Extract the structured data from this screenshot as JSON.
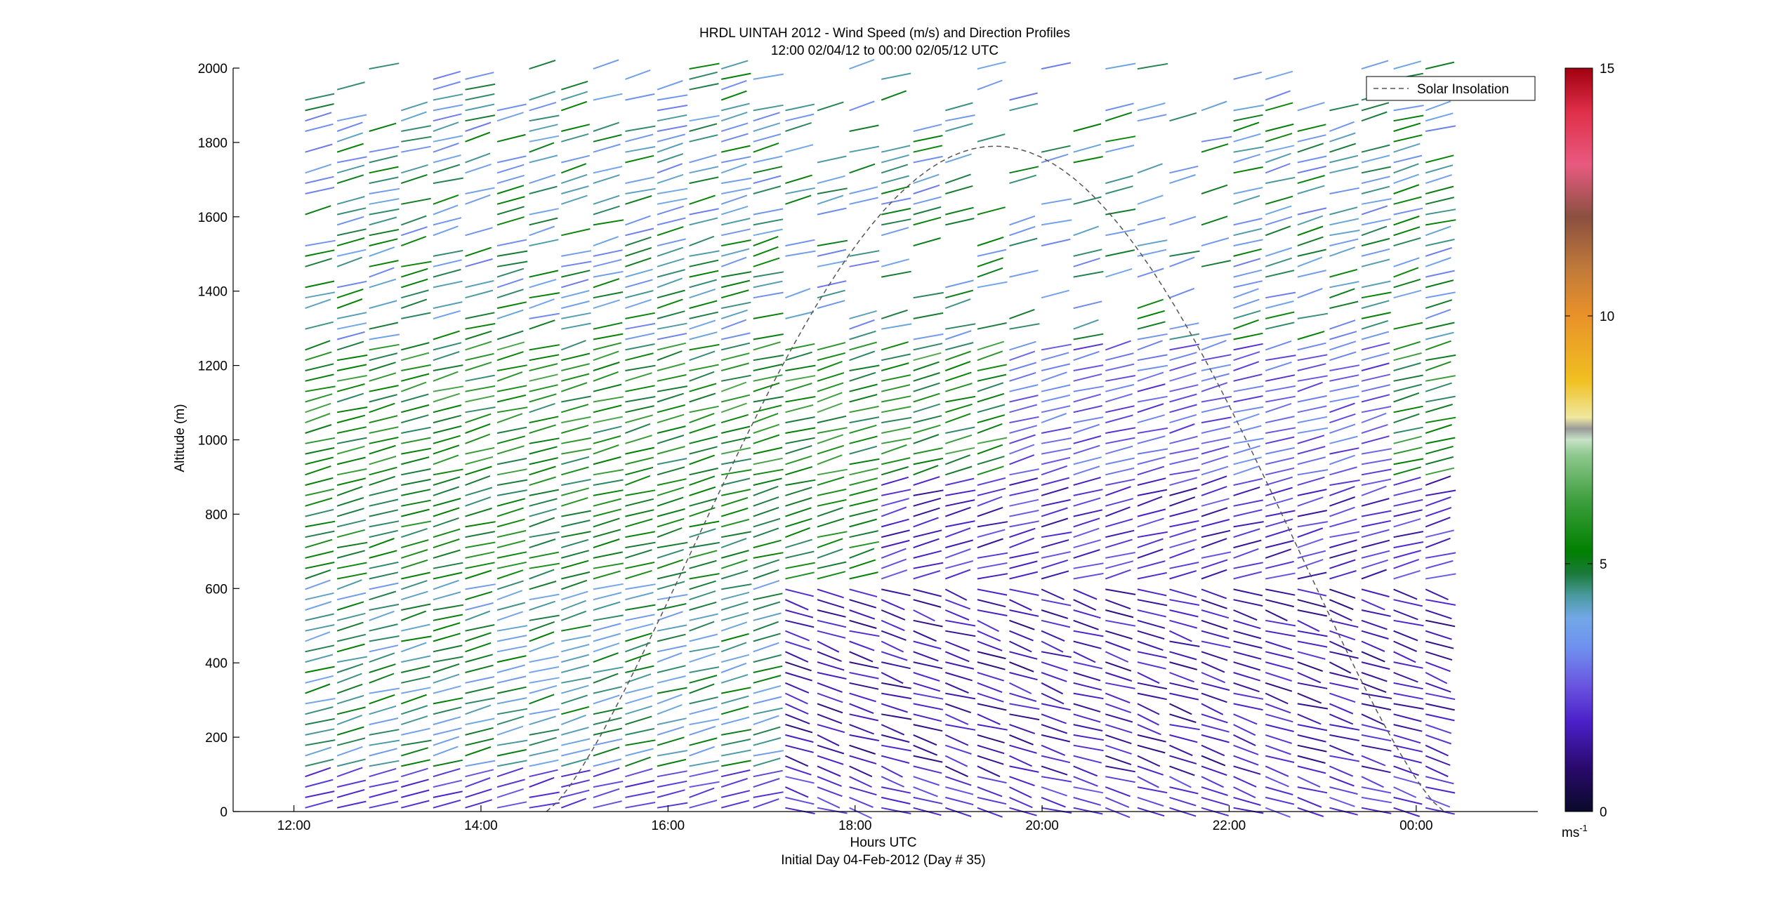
{
  "chart_data": {
    "type": "wind-barb-profile",
    "title": "HRDL UINTAH 2012 - Wind Speed (m/s) and Direction Profiles",
    "subtitle": "12:00 02/04/12 to 00:00 02/05/12  UTC",
    "xlabel": "Hours UTC",
    "xlabel2": "Initial Day 04-Feb-2012 (Day # 35)",
    "ylabel": "Altitude (m)",
    "x_ticks": [
      "12:00",
      "14:00",
      "16:00",
      "18:00",
      "20:00",
      "22:00",
      "00:00"
    ],
    "x_tick_hours": [
      12,
      14,
      16,
      18,
      20,
      22,
      24
    ],
    "x_range_hours": [
      11.35,
      25.3
    ],
    "ylim": [
      0,
      2000
    ],
    "y_ticks": [
      0,
      200,
      400,
      600,
      800,
      1000,
      1200,
      1400,
      1600,
      1800,
      2000
    ],
    "legend": {
      "label": "Solar Insolation",
      "style": "dashed",
      "color": "#555555",
      "location": "top-right"
    },
    "solar_insolation_curve": {
      "start_hour": 14.7,
      "end_hour": 24.3,
      "peak_hour": 19.5,
      "peak_altitude": 1790
    },
    "profiles": {
      "first_hour": 12.12,
      "last_hour": 24.1,
      "count": 36,
      "altitude_step": 28,
      "max_altitude": 2000
    },
    "colorbar": {
      "min": 0,
      "max": 15,
      "ticks": [
        0,
        5,
        10,
        15
      ],
      "unit": "ms",
      "unit_superscript": "-1",
      "colormap": [
        [
          0.0,
          "#0a0a2a"
        ],
        [
          0.06,
          "#2a0a6e"
        ],
        [
          0.12,
          "#4b1fc8"
        ],
        [
          0.17,
          "#6a55e0"
        ],
        [
          0.22,
          "#6f90ee"
        ],
        [
          0.26,
          "#72a8e8"
        ],
        [
          0.29,
          "#4b9aa0"
        ],
        [
          0.32,
          "#1a7a3a"
        ],
        [
          0.35,
          "#008000"
        ],
        [
          0.42,
          "#3f9f3f"
        ],
        [
          0.48,
          "#8fc88f"
        ],
        [
          0.5,
          "#c6e2c6"
        ],
        [
          0.515,
          "#9a9a9a"
        ],
        [
          0.53,
          "#f0e8a0"
        ],
        [
          0.58,
          "#f0c020"
        ],
        [
          0.67,
          "#e8902a"
        ],
        [
          0.73,
          "#c07a3a"
        ],
        [
          0.8,
          "#8a5040"
        ],
        [
          0.87,
          "#e85a80"
        ],
        [
          0.94,
          "#e0304a"
        ],
        [
          1.0,
          "#a00010"
        ]
      ]
    }
  }
}
